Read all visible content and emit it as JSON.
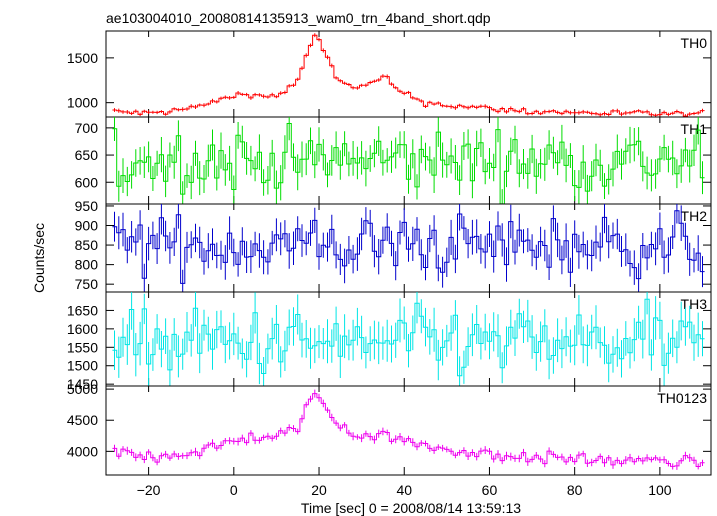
{
  "chart_data": {
    "type": "line",
    "title": "ae103004010_20080814135913_wam0_trn_4band_short.qdp",
    "xlabel": "Time [sec] 0 = 2008/08/14 13:59:13",
    "ylabel": "Counts/sec",
    "xlim": [
      -30,
      112
    ],
    "x_ticks": [
      -20,
      0,
      20,
      40,
      60,
      80,
      100
    ],
    "x_tick_labels": [
      "−20",
      "0",
      "20",
      "40",
      "60",
      "80",
      "100"
    ],
    "bin_width": 1,
    "x_start": -28,
    "x_end": 110,
    "grid": false,
    "legend": "none",
    "panels": [
      {
        "name": "TH0",
        "color": "#ff0000",
        "ylim": [
          840,
          1800
        ],
        "y_ticks": [
          1000,
          1500
        ],
        "y_tick_labels": [
          "1000",
          "1500"
        ],
        "noise": 18,
        "err": 20,
        "profile": [
          [
            -28,
            900
          ],
          [
            -20,
            880
          ],
          [
            -12,
            920
          ],
          [
            -5,
            1000
          ],
          [
            0,
            1080
          ],
          [
            4,
            1100
          ],
          [
            8,
            1060
          ],
          [
            12,
            1120
          ],
          [
            15,
            1250
          ],
          [
            17,
            1500
          ],
          [
            19,
            1760
          ],
          [
            21,
            1600
          ],
          [
            24,
            1300
          ],
          [
            28,
            1150
          ],
          [
            32,
            1200
          ],
          [
            35,
            1300
          ],
          [
            38,
            1150
          ],
          [
            45,
            1000
          ],
          [
            55,
            950
          ],
          [
            70,
            900
          ],
          [
            90,
            880
          ],
          [
            110,
            870
          ]
        ]
      },
      {
        "name": "TH1",
        "color": "#00dd00",
        "ylim": [
          560,
          720
        ],
        "y_ticks": [
          600,
          650,
          700
        ],
        "y_tick_labels": [
          "600",
          "650",
          "700"
        ],
        "noise": 28,
        "err": 28,
        "profile": [
          [
            -28,
            640
          ],
          [
            110,
            640
          ]
        ]
      },
      {
        "name": "TH2",
        "color": "#0000cc",
        "ylim": [
          730,
          955
        ],
        "y_ticks": [
          750,
          800,
          850,
          900,
          950
        ],
        "y_tick_labels": [
          "750",
          "800",
          "850",
          "900",
          "950"
        ],
        "noise": 38,
        "err": 38,
        "profile": [
          [
            -28,
            850
          ],
          [
            110,
            850
          ]
        ]
      },
      {
        "name": "TH3",
        "color": "#00e5e5",
        "ylim": [
          1445,
          1700
        ],
        "y_ticks": [
          1450,
          1500,
          1550,
          1600,
          1650
        ],
        "y_tick_labels": [
          "1450",
          "1500",
          "1550",
          "1600",
          "1650"
        ],
        "noise": 45,
        "err": 50,
        "profile": [
          [
            -28,
            1560
          ],
          [
            110,
            1560
          ]
        ]
      },
      {
        "name": "TH0123",
        "color": "#ee00ee",
        "ylim": [
          3620,
          5050
        ],
        "y_ticks": [
          4000,
          4500,
          5000
        ],
        "y_tick_labels": [
          "4000",
          "4500",
          "5000"
        ],
        "noise": 50,
        "err": 55,
        "profile": [
          [
            -28,
            3980
          ],
          [
            -20,
            3920
          ],
          [
            -12,
            3960
          ],
          [
            -5,
            4050
          ],
          [
            0,
            4180
          ],
          [
            4,
            4230
          ],
          [
            8,
            4200
          ],
          [
            12,
            4250
          ],
          [
            15,
            4400
          ],
          [
            17,
            4700
          ],
          [
            19,
            4970
          ],
          [
            21,
            4750
          ],
          [
            24,
            4450
          ],
          [
            28,
            4300
          ],
          [
            32,
            4260
          ],
          [
            35,
            4300
          ],
          [
            38,
            4200
          ],
          [
            45,
            4080
          ],
          [
            55,
            3980
          ],
          [
            70,
            3900
          ],
          [
            90,
            3850
          ],
          [
            110,
            3820
          ]
        ]
      }
    ]
  }
}
